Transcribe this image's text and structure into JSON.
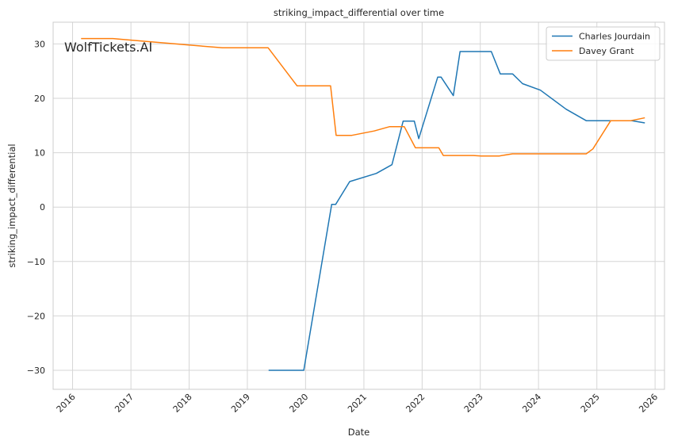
{
  "watermark": "WolfTickets.AI",
  "colors": {
    "grid": "#d6d6d6",
    "frame": "#cccccc",
    "series_1": "#1f77b4",
    "series_2": "#ff7f0e",
    "watermark": "#c4c4c4"
  },
  "chart_data": {
    "type": "line",
    "title": "striking_impact_differential over time",
    "xlabel": "Date",
    "ylabel": "striking_impact_differential",
    "x_axis_type": "date",
    "xlim": [
      "2015-09-01",
      "2026-03-01"
    ],
    "ylim": [
      -33.5,
      34
    ],
    "x_ticks": [
      "2016",
      "2017",
      "2018",
      "2019",
      "2020",
      "2021",
      "2022",
      "2023",
      "2024",
      "2025",
      "2026"
    ],
    "y_ticks": [
      -30,
      -20,
      -10,
      0,
      10,
      20,
      30
    ],
    "y_tick_labels": [
      "−30",
      "−20",
      "−10",
      "0",
      "10",
      "20",
      "30"
    ],
    "grid": true,
    "legend_position": "top-right",
    "series": [
      {
        "name": "Charles Jourdain",
        "color": "#1f77b4",
        "points": [
          [
            "2019-05-18",
            -30
          ],
          [
            "2019-12-21",
            -30
          ],
          [
            "2020-06-13",
            0.5
          ],
          [
            "2020-07-08",
            0.5
          ],
          [
            "2020-10-04",
            4.7
          ],
          [
            "2021-03-20",
            6.2
          ],
          [
            "2021-06-26",
            7.8
          ],
          [
            "2021-09-04",
            15.8
          ],
          [
            "2021-11-13",
            15.8
          ],
          [
            "2021-12-11",
            12.6
          ],
          [
            "2022-04-09",
            23.9
          ],
          [
            "2022-04-30",
            23.9
          ],
          [
            "2022-07-16",
            20.5
          ],
          [
            "2022-08-27",
            28.6
          ],
          [
            "2023-01-21",
            28.6
          ],
          [
            "2023-03-11",
            28.6
          ],
          [
            "2023-05-06",
            24.5
          ],
          [
            "2023-07-22",
            24.5
          ],
          [
            "2023-09-23",
            22.7
          ],
          [
            "2024-01-13",
            21.5
          ],
          [
            "2024-06-22",
            18.0
          ],
          [
            "2024-10-26",
            15.9
          ],
          [
            "2025-03-15",
            15.9
          ],
          [
            "2025-08-09",
            15.9
          ],
          [
            "2025-10-25",
            15.5
          ]
        ]
      },
      {
        "name": "Davey Grant",
        "color": "#ff7f0e",
        "points": [
          [
            "2016-02-27",
            31.0
          ],
          [
            "2016-09-10",
            31.0
          ],
          [
            "2016-11-19",
            30.8
          ],
          [
            "2017-12-30",
            29.8
          ],
          [
            "2018-07-28",
            29.3
          ],
          [
            "2019-05-11",
            29.3
          ],
          [
            "2019-11-09",
            22.3
          ],
          [
            "2020-06-06",
            22.3
          ],
          [
            "2020-07-11",
            13.2
          ],
          [
            "2020-10-17",
            13.2
          ],
          [
            "2021-03-06",
            14.0
          ],
          [
            "2021-06-12",
            14.8
          ],
          [
            "2021-09-11",
            14.8
          ],
          [
            "2021-11-20",
            10.9
          ],
          [
            "2022-04-16",
            10.9
          ],
          [
            "2022-05-14",
            9.5
          ],
          [
            "2022-11-19",
            9.5
          ],
          [
            "2023-01-07",
            9.4
          ],
          [
            "2023-04-29",
            9.4
          ],
          [
            "2023-07-22",
            9.8
          ],
          [
            "2024-01-27",
            9.8
          ],
          [
            "2024-10-26",
            9.8
          ],
          [
            "2024-12-07",
            10.7
          ],
          [
            "2025-03-29",
            15.9
          ],
          [
            "2025-08-02",
            15.9
          ],
          [
            "2025-10-25",
            16.4
          ]
        ]
      }
    ]
  }
}
